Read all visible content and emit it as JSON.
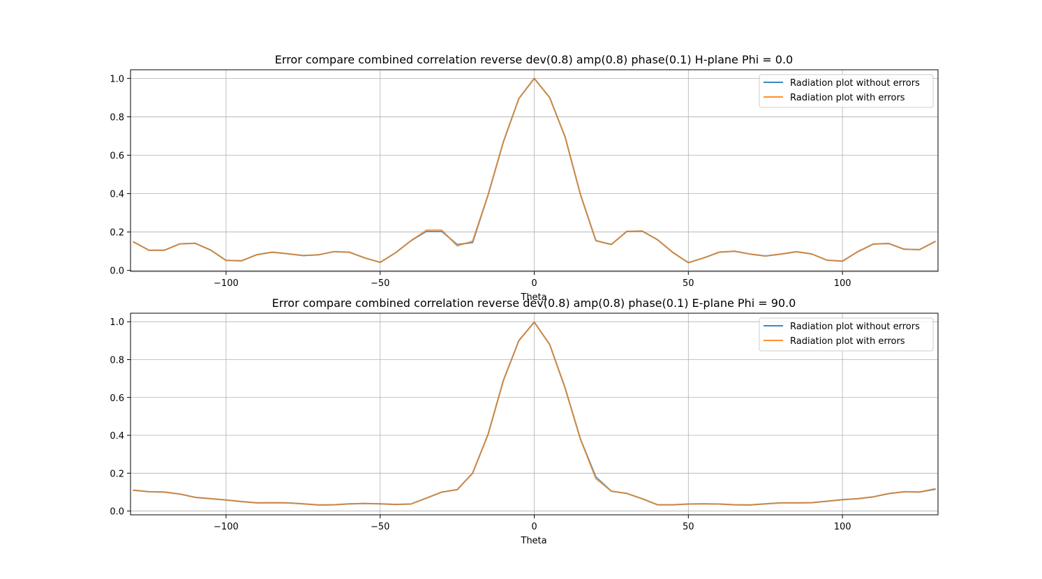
{
  "chart_data": [
    {
      "type": "line",
      "title": "Error compare combined correlation reverse dev(0.8) amp(0.8) phase(0.1) H-plane Phi = 0.0",
      "xlabel": "Theta",
      "ylabel": "",
      "xlim": [
        -131,
        131
      ],
      "ylim": [
        -0.005,
        1.045
      ],
      "xticks": [
        -100,
        -50,
        0,
        50,
        100
      ],
      "xtick_labels": [
        "−100",
        "−50",
        "0",
        "50",
        "100"
      ],
      "yticks": [
        0.0,
        0.2,
        0.4,
        0.6,
        0.8,
        1.0
      ],
      "ytick_labels": [
        "0.0",
        "0.2",
        "0.4",
        "0.6",
        "0.8",
        "1.0"
      ],
      "grid": true,
      "legend_position": "top-right",
      "x": [
        -130,
        -125,
        -120,
        -115,
        -110,
        -105,
        -100,
        -95,
        -90,
        -85,
        -80,
        -75,
        -70,
        -65,
        -60,
        -55,
        -50,
        -45,
        -40,
        -35,
        -30,
        -25,
        -20,
        -15,
        -10,
        -5,
        0,
        5,
        10,
        15,
        20,
        25,
        30,
        35,
        40,
        45,
        50,
        55,
        60,
        65,
        70,
        75,
        80,
        85,
        90,
        95,
        100,
        105,
        110,
        115,
        120,
        125,
        130
      ],
      "series": [
        {
          "name": "Radiation plot without errors",
          "color": "#1f77b4",
          "values": [
            0.148,
            0.105,
            0.105,
            0.138,
            0.141,
            0.106,
            0.052,
            0.05,
            0.082,
            0.095,
            0.087,
            0.077,
            0.081,
            0.098,
            0.095,
            0.065,
            0.042,
            0.092,
            0.155,
            0.203,
            0.203,
            0.135,
            0.145,
            0.393,
            0.67,
            0.895,
            1.0,
            0.9,
            0.695,
            0.395,
            0.155,
            0.135,
            0.203,
            0.205,
            0.16,
            0.093,
            0.04,
            0.065,
            0.095,
            0.1,
            0.085,
            0.075,
            0.085,
            0.097,
            0.086,
            0.053,
            0.048,
            0.098,
            0.137,
            0.14,
            0.11,
            0.108,
            0.15
          ]
        },
        {
          "name": "Radiation plot with errors",
          "color": "#ff7f0e",
          "values": [
            0.148,
            0.105,
            0.105,
            0.138,
            0.141,
            0.106,
            0.052,
            0.05,
            0.082,
            0.095,
            0.087,
            0.077,
            0.081,
            0.098,
            0.095,
            0.065,
            0.042,
            0.092,
            0.155,
            0.21,
            0.21,
            0.127,
            0.153,
            0.393,
            0.67,
            0.895,
            1.0,
            0.9,
            0.695,
            0.395,
            0.155,
            0.135,
            0.203,
            0.205,
            0.16,
            0.093,
            0.04,
            0.065,
            0.095,
            0.1,
            0.085,
            0.075,
            0.085,
            0.097,
            0.086,
            0.053,
            0.048,
            0.098,
            0.137,
            0.14,
            0.11,
            0.108,
            0.15
          ]
        }
      ]
    },
    {
      "type": "line",
      "title": "Error compare combined correlation reverse dev(0.8) amp(0.8) phase(0.1) E-plane Phi = 90.0",
      "xlabel": "Theta",
      "ylabel": "",
      "xlim": [
        -131,
        131
      ],
      "ylim": [
        -0.02,
        1.045
      ],
      "xticks": [
        -100,
        -50,
        0,
        50,
        100
      ],
      "xtick_labels": [
        "−100",
        "−50",
        "0",
        "50",
        "100"
      ],
      "yticks": [
        0.0,
        0.2,
        0.4,
        0.6,
        0.8,
        1.0
      ],
      "ytick_labels": [
        "0.0",
        "0.2",
        "0.4",
        "0.6",
        "0.8",
        "1.0"
      ],
      "grid": true,
      "legend_position": "top-right",
      "x": [
        -130,
        -125,
        -120,
        -115,
        -110,
        -105,
        -100,
        -95,
        -90,
        -85,
        -80,
        -75,
        -70,
        -65,
        -60,
        -55,
        -50,
        -45,
        -40,
        -35,
        -30,
        -25,
        -20,
        -15,
        -10,
        -5,
        0,
        5,
        10,
        15,
        20,
        25,
        30,
        35,
        40,
        45,
        50,
        55,
        60,
        65,
        70,
        75,
        80,
        85,
        90,
        95,
        100,
        105,
        110,
        115,
        120,
        125,
        130
      ],
      "series": [
        {
          "name": "Radiation plot without errors",
          "color": "#1f77b4",
          "values": [
            0.11,
            0.102,
            0.1,
            0.09,
            0.072,
            0.065,
            0.058,
            0.05,
            0.043,
            0.044,
            0.043,
            0.038,
            0.032,
            0.033,
            0.038,
            0.04,
            0.038,
            0.035,
            0.037,
            0.068,
            0.1,
            0.113,
            0.2,
            0.405,
            0.69,
            0.9,
            0.998,
            0.88,
            0.65,
            0.38,
            0.18,
            0.105,
            0.093,
            0.065,
            0.033,
            0.033,
            0.037,
            0.038,
            0.037,
            0.033,
            0.032,
            0.038,
            0.043,
            0.043,
            0.044,
            0.052,
            0.06,
            0.065,
            0.075,
            0.092,
            0.102,
            0.1,
            0.115
          ]
        },
        {
          "name": "Radiation plot with errors",
          "color": "#ff7f0e",
          "values": [
            0.11,
            0.102,
            0.1,
            0.09,
            0.072,
            0.065,
            0.058,
            0.05,
            0.043,
            0.044,
            0.043,
            0.038,
            0.032,
            0.033,
            0.038,
            0.04,
            0.038,
            0.035,
            0.037,
            0.068,
            0.1,
            0.113,
            0.2,
            0.405,
            0.69,
            0.9,
            0.998,
            0.88,
            0.65,
            0.38,
            0.17,
            0.105,
            0.093,
            0.065,
            0.033,
            0.033,
            0.037,
            0.038,
            0.037,
            0.033,
            0.032,
            0.038,
            0.043,
            0.043,
            0.044,
            0.052,
            0.06,
            0.065,
            0.075,
            0.092,
            0.102,
            0.1,
            0.118
          ]
        }
      ]
    }
  ]
}
